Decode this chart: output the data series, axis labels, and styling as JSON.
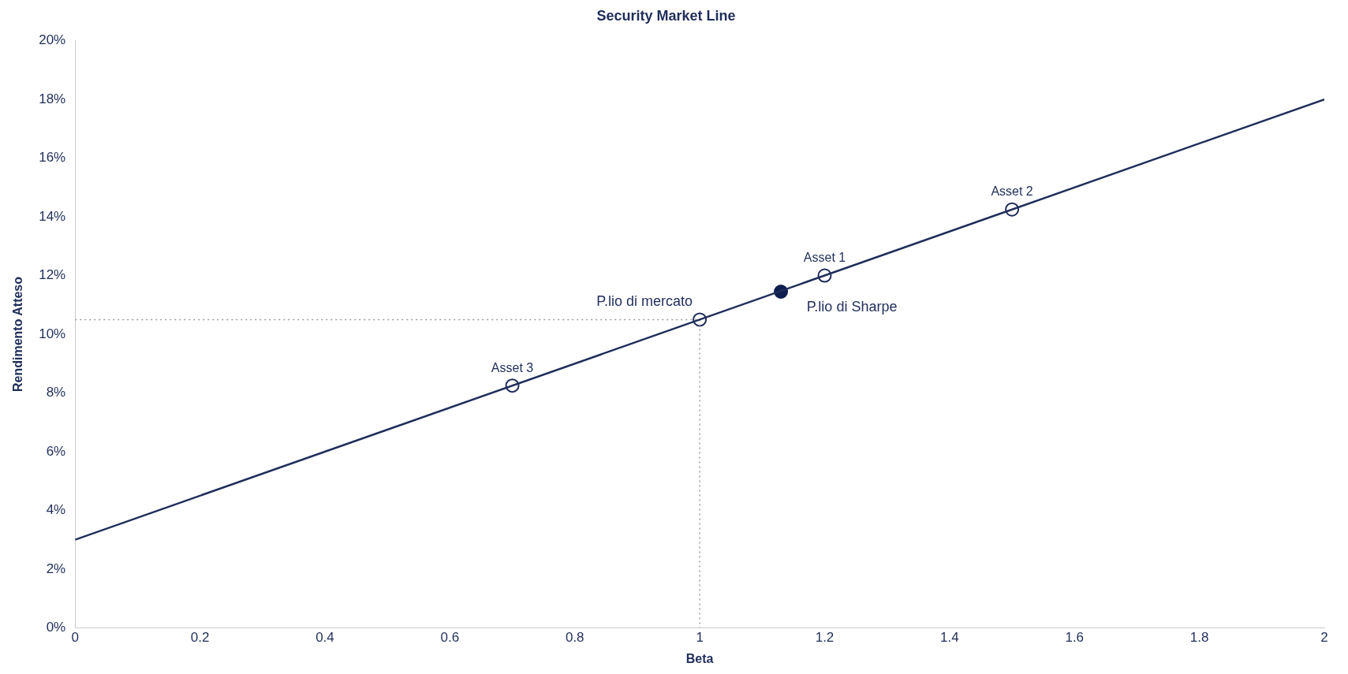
{
  "chart_data": {
    "type": "scatter",
    "title": "Security Market Line",
    "xlabel": "Beta",
    "ylabel": "Rendimento Atteso",
    "xlim": [
      0,
      2
    ],
    "xticks": [
      0,
      0.2,
      0.4,
      0.6,
      0.8,
      1,
      1.2,
      1.4,
      1.6,
      1.8,
      2
    ],
    "ylim": [
      0,
      20
    ],
    "yticks": [
      {
        "value": 0,
        "label": "0%"
      },
      {
        "value": 2,
        "label": "2%"
      },
      {
        "value": 4,
        "label": "4%"
      },
      {
        "value": 6,
        "label": "6%"
      },
      {
        "value": 8,
        "label": "8%"
      },
      {
        "value": 10,
        "label": "10%"
      },
      {
        "value": 12,
        "label": "12%"
      },
      {
        "value": 14,
        "label": "14%"
      },
      {
        "value": 16,
        "label": "16%"
      },
      {
        "value": 18,
        "label": "18%"
      },
      {
        "value": 20,
        "label": "20%"
      }
    ],
    "grid": false,
    "legend": false,
    "series": [
      {
        "type": "line",
        "color": "#1f2d5a",
        "x": [
          0,
          2
        ],
        "values": [
          3,
          18
        ],
        "marker": "none",
        "line_style": "solid"
      },
      {
        "type": "line",
        "color": "#9a9a9a",
        "x": [
          0,
          1,
          1
        ],
        "values": [
          10.5,
          10.5,
          0
        ],
        "marker": "none",
        "line_style": "dotted"
      },
      {
        "color": "#1f2d5a",
        "colors": [
          "#ffffff",
          "#ffffff",
          "#ffffff",
          "#ffffff"
        ],
        "x": [
          0.7,
          1,
          1.2,
          1.5
        ],
        "values": [
          8.25,
          10.5,
          12,
          14.25
        ],
        "marker": "circle"
      },
      {
        "color": "#0d1f4f",
        "colors": [
          "#0d1f4f"
        ],
        "x": [
          1.13
        ],
        "values": [
          11.45
        ],
        "marker": "circle"
      }
    ],
    "annotations": [
      {
        "text": "Asset 3",
        "x": 0.7,
        "y": 8.25
      },
      {
        "text": "P.lio di mercato",
        "x": 1,
        "y": 10.5
      },
      {
        "text": "Asset 1",
        "x": 1.2,
        "y": 12
      },
      {
        "text": "P.lio di Sharpe",
        "x": 1.13,
        "y": 11.45
      },
      {
        "text": "Asset 2",
        "x": 1.5,
        "y": 14.25
      }
    ]
  }
}
